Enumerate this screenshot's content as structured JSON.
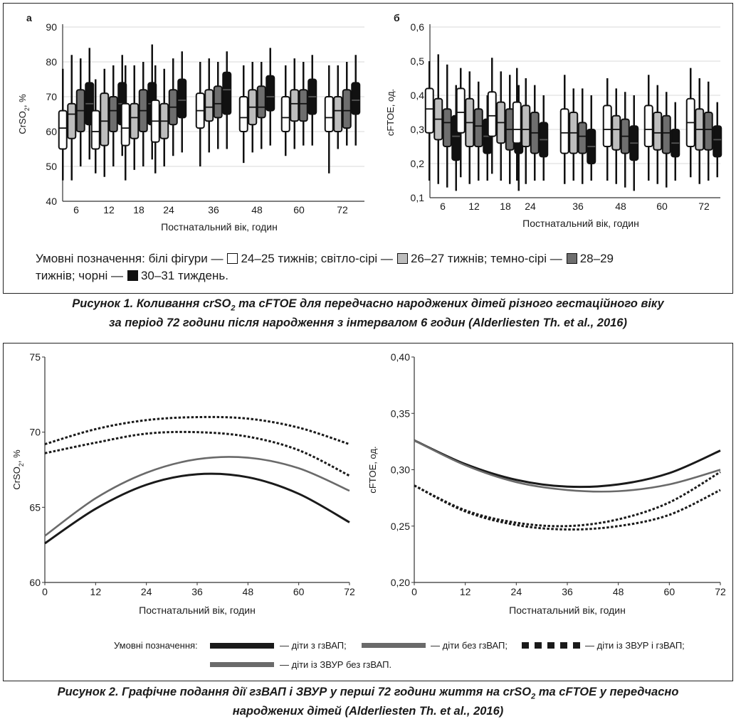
{
  "figure1": {
    "caption_line1_a": "Рисунок 1. Коливання crSO",
    "caption_line1_sub": "2",
    "caption_line1_b": " та cFTOE для передчасно народжених дітей різного гестаційного віку",
    "caption_line2": "за період 72 години після народження з інтервалом 6 годин (Alderliesten Th. et al., 2016)",
    "legend_text_1": "Умовні позначення: білі фігури —",
    "legend_text_2": "24–25 тижнів; світло-сірі —",
    "legend_text_3": "26–27 тижнів; темно-сірі —",
    "legend_text_4": "28–29",
    "legend_text_5": "тижнів; чорні —",
    "legend_text_6": "30–31 тиждень."
  },
  "figure2": {
    "caption_line1_a": "Рисунок 2. Графічне подання дії гзВАП і ЗВУР у перші 72 години життя на crSO",
    "caption_line1_sub": "2",
    "caption_line1_b": " та cFTOE у передчасно",
    "caption_line2": "народжених дітей (Alderliesten Th. et al., 2016)",
    "legend_title": "Умовні позначення:",
    "legend_items": [
      "— діти з гзВАП;",
      "— діти без гзВАП;",
      "— діти із ЗВУР і гзВАП;",
      "— діти із ЗВУР без гзВАП."
    ]
  },
  "colors": {
    "white": "#ffffff",
    "light_gray": "#bdbdbd",
    "dark_gray": "#6e6e6e",
    "black": "#111111",
    "gray_line": "#6a6a6a"
  },
  "chart_data": [
    {
      "id": "fig1a",
      "panel_label": "а",
      "type": "box",
      "ylabel": "CrSO2, %",
      "xlabel": "Постнатальний вік, годин",
      "ylim": [
        40,
        90
      ],
      "yticks": [
        40,
        50,
        60,
        70,
        80,
        90
      ],
      "categories": [
        "6",
        "12",
        "18",
        "24",
        "36",
        "48",
        "60",
        "72"
      ],
      "groups": [
        "24–25 тижнів",
        "26–27 тижнів",
        "28–29 тижнів",
        "30–31 тиждень"
      ],
      "grid": true,
      "boxes": [
        [
          [
            46,
            55,
            61,
            66,
            78
          ],
          [
            46,
            58,
            65,
            68,
            82
          ],
          [
            50,
            60,
            66,
            72,
            81
          ],
          [
            52,
            62,
            68,
            74,
            84
          ]
        ],
        [
          [
            48,
            55,
            60,
            66,
            75
          ],
          [
            47,
            56,
            63,
            71,
            78
          ],
          [
            50,
            60,
            66,
            70,
            79
          ],
          [
            53,
            62,
            68,
            74,
            82
          ]
        ],
        [
          [
            46,
            56,
            61,
            68,
            79
          ],
          [
            49,
            58,
            64,
            68,
            79
          ],
          [
            50,
            60,
            66,
            72,
            80
          ],
          [
            52,
            62,
            68,
            74,
            85
          ]
        ],
        [
          [
            48,
            57,
            63,
            69,
            79
          ],
          [
            50,
            58,
            63,
            68,
            78
          ],
          [
            53,
            62,
            67,
            72,
            81
          ],
          [
            54,
            64,
            69,
            75,
            83
          ]
        ],
        [
          [
            50,
            61,
            66,
            71,
            80
          ],
          [
            54,
            63,
            67,
            72,
            81
          ],
          [
            55,
            64,
            68,
            73,
            80
          ],
          [
            55,
            65,
            72,
            77,
            83
          ]
        ],
        [
          [
            51,
            60,
            64,
            70,
            79
          ],
          [
            54,
            62,
            67,
            72,
            80
          ],
          [
            55,
            64,
            67,
            73,
            80
          ],
          [
            56,
            66,
            70,
            76,
            84
          ]
        ],
        [
          [
            53,
            60,
            64,
            70,
            79
          ],
          [
            55,
            63,
            68,
            72,
            81
          ],
          [
            56,
            63,
            68,
            72,
            80
          ],
          [
            56,
            65,
            70,
            75,
            82
          ]
        ],
        [
          [
            48,
            60,
            64,
            70,
            79
          ],
          [
            55,
            60,
            66,
            70,
            79
          ],
          [
            56,
            61,
            66,
            72,
            80
          ],
          [
            56,
            65,
            69,
            74,
            82
          ]
        ]
      ]
    },
    {
      "id": "fig1b",
      "panel_label": "б",
      "type": "box",
      "ylabel": "cFTOE, од.",
      "xlabel": "Постнатальний вік, годин",
      "ylim": [
        0.1,
        0.6
      ],
      "yticks": [
        "0,1",
        "0,2",
        "0,3",
        "0,4",
        "0,5",
        "0,6"
      ],
      "categories": [
        "6",
        "12",
        "18",
        "24",
        "36",
        "48",
        "60",
        "72"
      ],
      "groups": [
        "24–25 тижнів",
        "26–27 тижнів",
        "28–29 тижнів",
        "30–31 тиждень"
      ],
      "grid": true,
      "boxes": [
        [
          [
            0.15,
            0.29,
            0.36,
            0.42,
            0.5
          ],
          [
            0.14,
            0.27,
            0.33,
            0.39,
            0.52
          ],
          [
            0.13,
            0.25,
            0.32,
            0.36,
            0.49
          ],
          [
            0.12,
            0.21,
            0.28,
            0.34,
            0.43
          ]
        ],
        [
          [
            0.16,
            0.29,
            0.35,
            0.42,
            0.48
          ],
          [
            0.14,
            0.25,
            0.32,
            0.39,
            0.47
          ],
          [
            0.15,
            0.25,
            0.31,
            0.36,
            0.44
          ],
          [
            0.15,
            0.23,
            0.28,
            0.33,
            0.4
          ]
        ],
        [
          [
            0.17,
            0.28,
            0.34,
            0.41,
            0.51
          ],
          [
            0.15,
            0.26,
            0.32,
            0.38,
            0.47
          ],
          [
            0.14,
            0.24,
            0.3,
            0.36,
            0.46
          ],
          [
            0.12,
            0.23,
            0.28,
            0.33,
            0.43
          ]
        ],
        [
          [
            0.15,
            0.26,
            0.3,
            0.38,
            0.48
          ],
          [
            0.14,
            0.25,
            0.3,
            0.37,
            0.45
          ],
          [
            0.15,
            0.23,
            0.29,
            0.35,
            0.43
          ],
          [
            0.15,
            0.22,
            0.27,
            0.32,
            0.4
          ]
        ],
        [
          [
            0.14,
            0.23,
            0.29,
            0.36,
            0.46
          ],
          [
            0.15,
            0.23,
            0.29,
            0.35,
            0.42
          ],
          [
            0.14,
            0.23,
            0.28,
            0.32,
            0.42
          ],
          [
            0.15,
            0.2,
            0.25,
            0.3,
            0.4
          ]
        ],
        [
          [
            0.15,
            0.25,
            0.3,
            0.37,
            0.45
          ],
          [
            0.14,
            0.24,
            0.3,
            0.34,
            0.42
          ],
          [
            0.13,
            0.23,
            0.28,
            0.33,
            0.41
          ],
          [
            0.12,
            0.21,
            0.26,
            0.31,
            0.4
          ]
        ],
        [
          [
            0.15,
            0.25,
            0.3,
            0.37,
            0.46
          ],
          [
            0.14,
            0.24,
            0.29,
            0.35,
            0.43
          ],
          [
            0.13,
            0.23,
            0.29,
            0.34,
            0.41
          ],
          [
            0.15,
            0.22,
            0.26,
            0.3,
            0.38
          ]
        ],
        [
          [
            0.16,
            0.25,
            0.32,
            0.39,
            0.48
          ],
          [
            0.14,
            0.24,
            0.3,
            0.36,
            0.45
          ],
          [
            0.15,
            0.24,
            0.3,
            0.35,
            0.44
          ],
          [
            0.16,
            0.22,
            0.27,
            0.31,
            0.38
          ]
        ]
      ]
    },
    {
      "id": "fig2a",
      "type": "line",
      "ylabel": "CrSO2, %",
      "xlabel": "Постнатальний вік, годин",
      "xlim": [
        0,
        72
      ],
      "ylim": [
        60,
        75
      ],
      "xticks": [
        "0",
        "12",
        "24",
        "36",
        "48",
        "60",
        "72"
      ],
      "yticks": [
        "60",
        "65",
        "70",
        "75"
      ],
      "x": [
        0,
        12,
        24,
        36,
        48,
        60,
        72
      ],
      "series": [
        {
          "name": "діти з гзВАП",
          "style": "solid-black",
          "values": [
            62.6,
            64.9,
            66.5,
            67.2,
            67.0,
            65.9,
            64.0
          ]
        },
        {
          "name": "діти без гзВАП",
          "style": "solid-gray",
          "values": [
            63.1,
            65.6,
            67.3,
            68.2,
            68.3,
            67.6,
            66.1
          ]
        },
        {
          "name": "діти із ЗВУР і гзВАП",
          "style": "dotted-black",
          "values": [
            68.6,
            69.3,
            69.9,
            70.0,
            69.7,
            68.8,
            67.1
          ]
        },
        {
          "name": "діти із ЗВУР без гзВАП",
          "style": "dotted-black",
          "values": [
            69.2,
            70.2,
            70.8,
            71.0,
            70.9,
            70.3,
            69.2
          ]
        }
      ]
    },
    {
      "id": "fig2b",
      "type": "line",
      "ylabel": "cFTOE, од.",
      "xlabel": "Постнатальний вік, годин",
      "xlim": [
        0,
        72
      ],
      "ylim": [
        0.2,
        0.4
      ],
      "xticks": [
        "0",
        "12",
        "24",
        "36",
        "48",
        "60",
        "72"
      ],
      "yticks": [
        "0,20",
        "0,25",
        "0,30",
        "0,35",
        "0,40"
      ],
      "x": [
        0,
        12,
        24,
        36,
        48,
        60,
        72
      ],
      "series": [
        {
          "name": "діти з гзВАП",
          "style": "solid-black",
          "values": [
            0.326,
            0.305,
            0.291,
            0.285,
            0.287,
            0.297,
            0.317
          ]
        },
        {
          "name": "діти без гзВАП",
          "style": "solid-gray",
          "values": [
            0.326,
            0.304,
            0.289,
            0.282,
            0.281,
            0.287,
            0.3
          ]
        },
        {
          "name": "діти із ЗВУР і гзВАП",
          "style": "dotted-black",
          "values": [
            0.286,
            0.264,
            0.253,
            0.25,
            0.256,
            0.271,
            0.298
          ]
        },
        {
          "name": "діти із ЗВУР без гзВАП",
          "style": "dotted-black",
          "values": [
            0.286,
            0.263,
            0.251,
            0.247,
            0.25,
            0.26,
            0.282
          ]
        }
      ]
    }
  ]
}
